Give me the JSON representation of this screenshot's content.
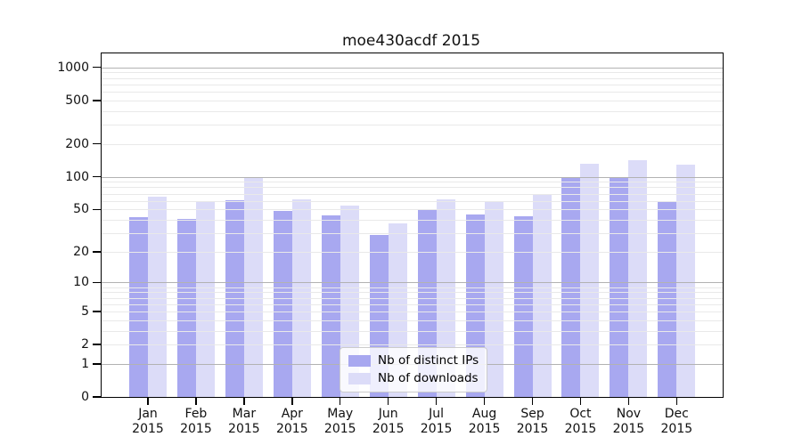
{
  "chart_data": {
    "type": "bar",
    "title": "moe430acdf 2015",
    "categories": [
      "Jan",
      "Feb",
      "Mar",
      "Apr",
      "May",
      "Jun",
      "Jul",
      "Aug",
      "Sep",
      "Oct",
      "Nov",
      "Dec"
    ],
    "year": "2015",
    "series": [
      {
        "name": "Nb of distinct IPs",
        "color": "#a8a8f0",
        "values": [
          42,
          41,
          61,
          48,
          44,
          29,
          49,
          45,
          43,
          100,
          100,
          59
        ]
      },
      {
        "name": "Nb of downloads",
        "color": "#dcdcf8",
        "values": [
          66,
          58,
          98,
          62,
          54,
          37,
          62,
          59,
          69,
          131,
          142,
          129
        ]
      }
    ],
    "yscale": "log(1+x)",
    "yticks": [
      0,
      1,
      2,
      5,
      10,
      20,
      50,
      100,
      200,
      500,
      1000
    ],
    "ylim": [
      0,
      1300
    ],
    "grid": true,
    "legend_position": "lower center",
    "colors": {
      "major_grid": "#b2b2b2",
      "minor_grid": "#e9e9e9",
      "spine": "#000000",
      "text": "#111111"
    }
  }
}
